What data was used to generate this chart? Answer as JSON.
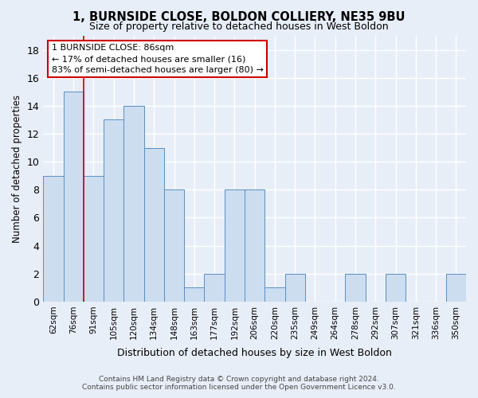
{
  "title": "1, BURNSIDE CLOSE, BOLDON COLLIERY, NE35 9BU",
  "subtitle": "Size of property relative to detached houses in West Boldon",
  "xlabel": "Distribution of detached houses by size in West Boldon",
  "ylabel": "Number of detached properties",
  "categories": [
    "62sqm",
    "76sqm",
    "91sqm",
    "105sqm",
    "120sqm",
    "134sqm",
    "148sqm",
    "163sqm",
    "177sqm",
    "192sqm",
    "206sqm",
    "220sqm",
    "235sqm",
    "249sqm",
    "264sqm",
    "278sqm",
    "292sqm",
    "307sqm",
    "321sqm",
    "336sqm",
    "350sqm"
  ],
  "values": [
    9,
    15,
    9,
    13,
    14,
    11,
    8,
    1,
    2,
    8,
    8,
    1,
    2,
    0,
    0,
    2,
    0,
    2,
    0,
    0,
    2
  ],
  "bar_color": "#ccddf0",
  "bar_edge_color": "#5a8fc0",
  "ylim": [
    0,
    19
  ],
  "yticks": [
    0,
    2,
    4,
    6,
    8,
    10,
    12,
    14,
    16,
    18
  ],
  "redline_x": 1.5,
  "annotation_title": "1 BURNSIDE CLOSE: 86sqm",
  "annotation_line2": "← 17% of detached houses are smaller (16)",
  "annotation_line3": "83% of semi-detached houses are larger (80) →",
  "annotation_box_edge": "#cc0000",
  "footer_line1": "Contains HM Land Registry data © Crown copyright and database right 2024.",
  "footer_line2": "Contains public sector information licensed under the Open Government Licence v3.0.",
  "background_color": "#e8eef8",
  "grid_color": "#d0d8e8"
}
